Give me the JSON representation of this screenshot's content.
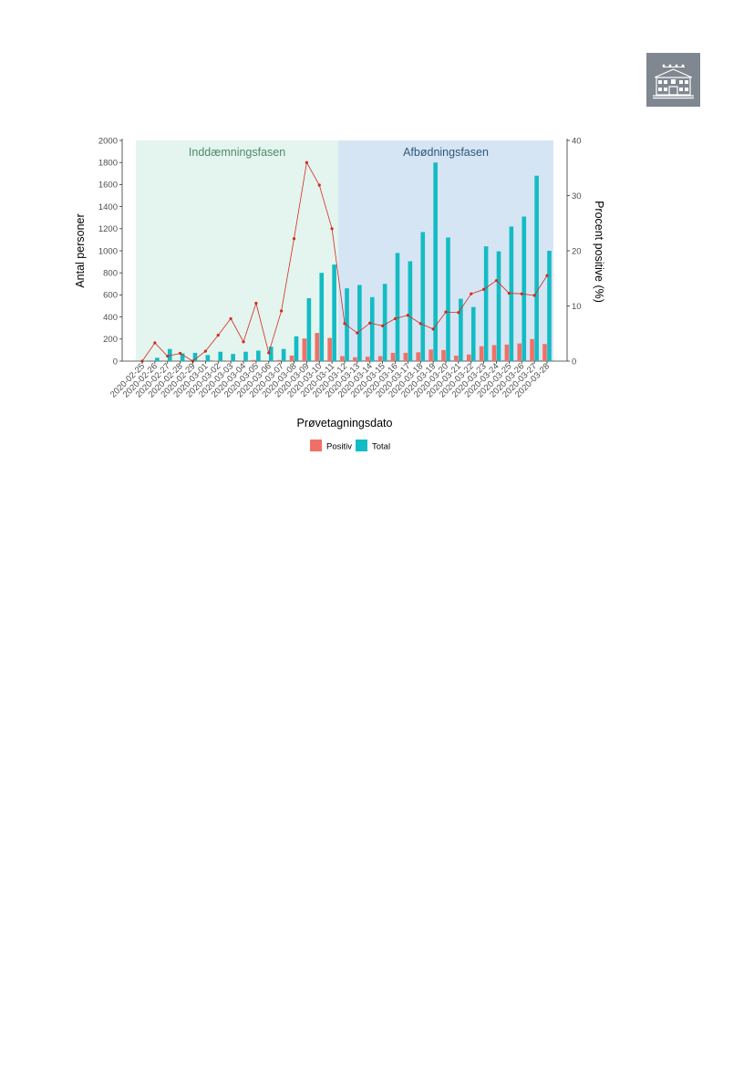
{
  "logo": {
    "icon": "building-icon",
    "color": "#7f8790"
  },
  "chart_data": {
    "type": "bar",
    "title": "",
    "xlabel": "Prøvetagningsdato",
    "ylabel": "Antal personer",
    "ylabel_right": "Procent positive (%)",
    "ylim": [
      0,
      2000
    ],
    "ylim_right": [
      0,
      40
    ],
    "yticks": [
      0,
      200,
      400,
      600,
      800,
      1000,
      1200,
      1400,
      1600,
      1800,
      2000
    ],
    "yticks_right": [
      0,
      10,
      20,
      30,
      40
    ],
    "grid": false,
    "legend_position": "bottom",
    "phases": [
      {
        "label": "Inddæmningsfasen",
        "start": "2020-02-25",
        "end": "2020-03-11",
        "color": "#e4f4ee",
        "text_color": "#4f8a6e"
      },
      {
        "label": "Afbødningsfasen",
        "start": "2020-03-12",
        "end": "2020-03-28",
        "color": "#d6e5f3",
        "text_color": "#2f5779"
      }
    ],
    "categories": [
      "2020-02-25",
      "2020-02-26",
      "2020-02-27",
      "2020-02-28",
      "2020-02-29",
      "2020-03-01",
      "2020-03-02",
      "2020-03-03",
      "2020-03-04",
      "2020-03-05",
      "2020-03-06",
      "2020-03-07",
      "2020-03-08",
      "2020-03-09",
      "2020-03-10",
      "2020-03-11",
      "2020-03-12",
      "2020-03-13",
      "2020-03-14",
      "2020-03-15",
      "2020-03-16",
      "2020-03-17",
      "2020-03-18",
      "2020-03-19",
      "2020-03-20",
      "2020-03-21",
      "2020-03-22",
      "2020-03-23",
      "2020-03-24",
      "2020-03-25",
      "2020-03-26",
      "2020-03-27",
      "2020-03-28"
    ],
    "series": [
      {
        "name": "Positiv",
        "color": "#f07067",
        "values": [
          0,
          1,
          1,
          1,
          0,
          1,
          4,
          5,
          3,
          10,
          2,
          10,
          50,
          205,
          255,
          210,
          45,
          35,
          40,
          45,
          75,
          75,
          80,
          105,
          100,
          50,
          60,
          135,
          145,
          150,
          160,
          200,
          155
        ]
      },
      {
        "name": "Total",
        "color": "#13bcc4",
        "values": [
          3,
          30,
          110,
          70,
          75,
          55,
          85,
          65,
          85,
          95,
          130,
          110,
          225,
          570,
          800,
          875,
          660,
          690,
          580,
          700,
          980,
          905,
          1170,
          1800,
          1120,
          565,
          490,
          1040,
          995,
          1220,
          1310,
          1680,
          1000
        ]
      },
      {
        "name": "Procent positive",
        "axis": "right",
        "type": "line",
        "color": "#d42a1c",
        "values": [
          0,
          3.3,
          0.9,
          1.4,
          0,
          1.8,
          4.7,
          7.7,
          3.5,
          10.5,
          1.5,
          9.1,
          22.2,
          36,
          31.9,
          24,
          6.8,
          5.1,
          6.9,
          6.4,
          7.7,
          8.3,
          6.8,
          5.8,
          8.9,
          8.8,
          12.2,
          13,
          14.6,
          12.3,
          12.2,
          11.9,
          15.5
        ]
      }
    ]
  }
}
